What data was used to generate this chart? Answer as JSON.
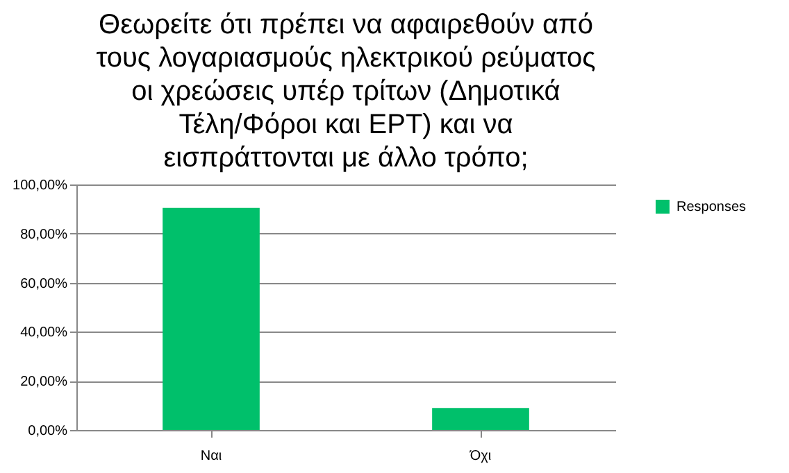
{
  "chart_data": {
    "type": "bar",
    "title": "Θεωρείτε ότι πρέπει να αφαιρεθούν από\nτους λογαριασμούς ηλεκτρικού ρεύματος\nοι χρεώσεις υπέρ τρίτων (Δημοτικά\nΤέλη/Φόροι και ΕΡΤ) και να\nεισπράττονται με άλλο τρόπο;",
    "categories": [
      "Ναι",
      "Όχι"
    ],
    "series": [
      {
        "name": "Responses",
        "color": "#00c06b",
        "values": [
          90.5,
          9
        ]
      }
    ],
    "ylim": [
      0,
      100
    ],
    "yticks": [
      {
        "value": 0,
        "label": "0,00%"
      },
      {
        "value": 20,
        "label": "20,00%"
      },
      {
        "value": 40,
        "label": "40,00%"
      },
      {
        "value": 60,
        "label": "60,00%"
      },
      {
        "value": 80,
        "label": "80,00%"
      },
      {
        "value": 100,
        "label": "100,00%"
      }
    ],
    "grid": "y",
    "legend": "right"
  }
}
